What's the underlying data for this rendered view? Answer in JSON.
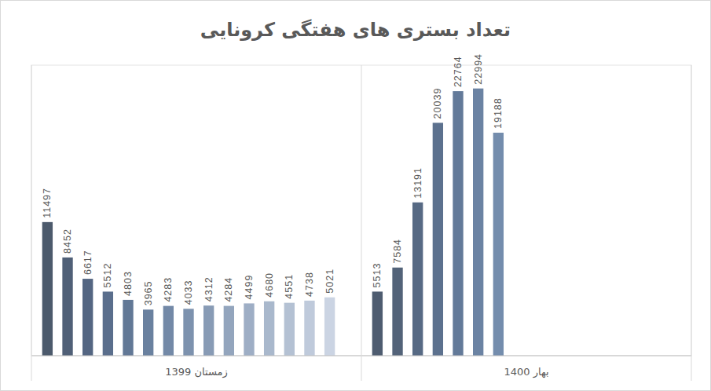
{
  "chart_data": {
    "type": "bar",
    "title": "تعداد بستری های هفتگی کرونایی",
    "groups": [
      {
        "label": "زمستان 1399",
        "values": [
          11497,
          8452,
          6617,
          5512,
          4803,
          3965,
          4283,
          4033,
          4312,
          4284,
          4499,
          4680,
          4551,
          4738,
          5021
        ],
        "colors": [
          "#4c5a6c",
          "#506077",
          "#546682",
          "#5a6e8c",
          "#627896",
          "#6a819f",
          "#7389a7",
          "#7d92ae",
          "#889bb5",
          "#93a5bd",
          "#9eaec5",
          "#a9b8cc",
          "#b4c1d3",
          "#bfcadb",
          "#cbd4e3"
        ]
      },
      {
        "label": "بهار 1400",
        "values": [
          5513,
          7584,
          13191,
          20039,
          22764,
          22994,
          19188
        ],
        "colors": [
          "#4e5c70",
          "#536379",
          "#576a84",
          "#5c718e",
          "#637a99",
          "#6b83a3",
          "#748dad"
        ]
      }
    ],
    "ylim": [
      0,
      25000
    ],
    "data_labels": true,
    "tick_labels": false,
    "grid": false
  }
}
